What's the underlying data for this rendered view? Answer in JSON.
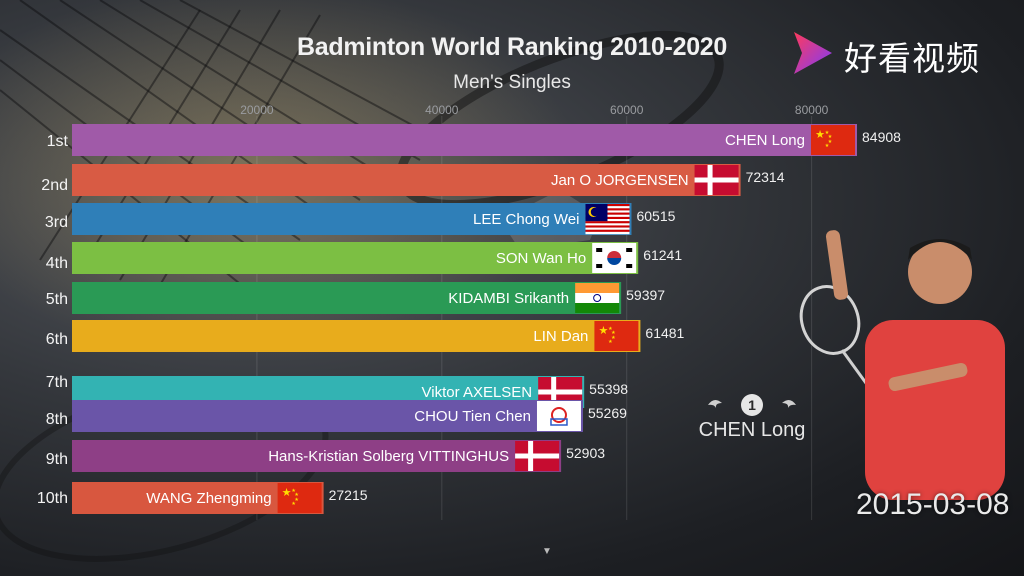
{
  "header": {
    "title": "Badminton World Ranking 2010-2020",
    "subtitle": "Men's Singles"
  },
  "logo": {
    "text": "好看视频",
    "icon": "play-triangle-icon"
  },
  "spotlight": {
    "rank": "1",
    "name": "CHEN Long",
    "date": "2015-03-08"
  },
  "colors": {
    "background": "#2c2e33",
    "rank1": "#a05aa8",
    "rank2": "#d85b44",
    "rank3": "#2f7fb8",
    "rank4": "#7cbf43",
    "rank5": "#2a9a55",
    "rank6": "#e8ac1c",
    "rank7": "#33b3b3",
    "rank8": "#6a55a8",
    "rank9": "#8e3f86",
    "rank10": "#d8573f"
  },
  "chart_data": {
    "type": "bar",
    "orientation": "horizontal",
    "title": "Badminton World Ranking 2010-2020",
    "subtitle": "Men's Singles",
    "xlim": [
      0,
      86000
    ],
    "x_ticks": [
      20000,
      40000,
      60000,
      80000
    ],
    "x_tick_labels": [
      "20000",
      "40000",
      "60000",
      "80000"
    ],
    "grid": true,
    "ranks": [
      "1st",
      "2nd",
      "3rd",
      "4th",
      "5th",
      "6th",
      "7th",
      "8th",
      "9th",
      "10th"
    ],
    "entries": [
      {
        "rank": "1st",
        "name": "CHEN Long",
        "value": 84908,
        "flag": "china",
        "color": "#a05aa8"
      },
      {
        "rank": "2nd",
        "name": "Jan O JORGENSEN",
        "value": 72314,
        "flag": "denmark",
        "color": "#d85b44"
      },
      {
        "rank": "3rd",
        "name": "LEE Chong Wei",
        "value": 60515,
        "flag": "malaysia",
        "color": "#2f7fb8"
      },
      {
        "rank": "4th",
        "name": "SON Wan Ho",
        "value": 61241,
        "flag": "korea",
        "color": "#7cbf43"
      },
      {
        "rank": "5th",
        "name": "KIDAMBI Srikanth",
        "value": 59397,
        "flag": "india",
        "color": "#2a9a55"
      },
      {
        "rank": "6th",
        "name": "LIN Dan",
        "value": 61481,
        "flag": "china",
        "color": "#e8ac1c"
      },
      {
        "rank": "7th",
        "name": "Viktor AXELSEN",
        "value": 55398,
        "flag": "denmark",
        "color": "#33b3b3"
      },
      {
        "rank": "8th",
        "name": "CHOU Tien Chen",
        "value": 55269,
        "flag": "chinese-taipei",
        "color": "#6a55a8"
      },
      {
        "rank": "9th",
        "name": "Hans-Kristian Solberg VITTINGHUS",
        "value": 52903,
        "flag": "denmark",
        "color": "#8e3f86"
      },
      {
        "rank": "10th",
        "name": "WANG Zhengming",
        "value": 27215,
        "flag": "china",
        "color": "#d8573f"
      }
    ]
  }
}
